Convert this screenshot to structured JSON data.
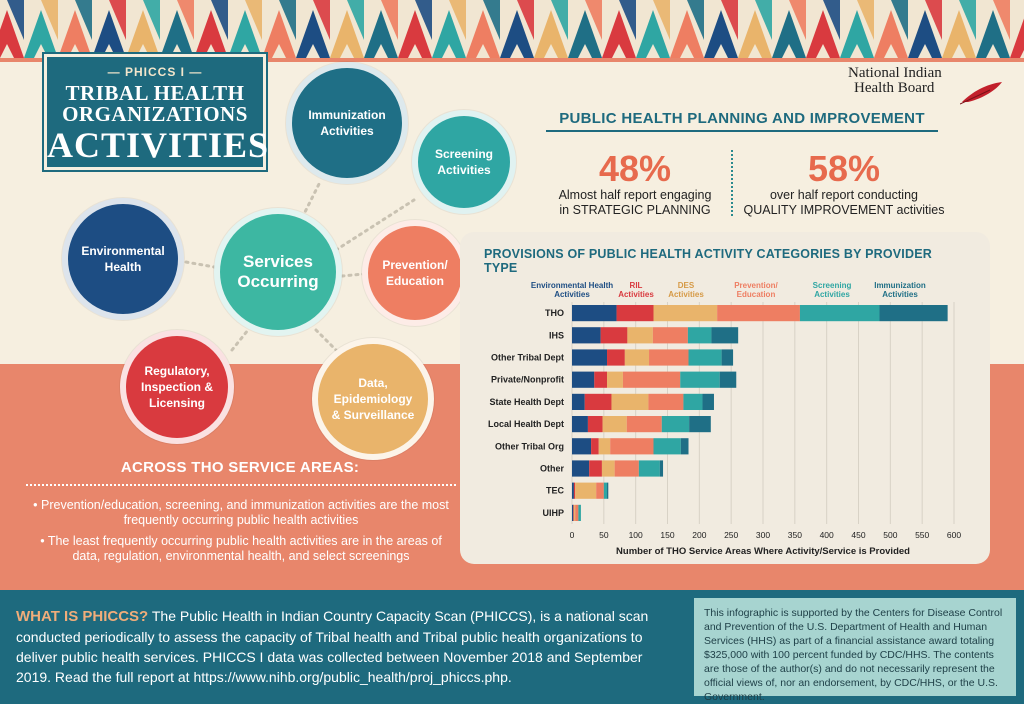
{
  "title": {
    "kicker": "— PHICCS I —",
    "line1": "TRIBAL HEALTH",
    "line2": "ORGANIZATIONS",
    "line3": "ACTIVITIES"
  },
  "org": {
    "line1": "National Indian",
    "line2": "Health Board"
  },
  "circles": {
    "immunization": "Immunization Activities",
    "screening": "Screening Activities",
    "environmental": "Environmental Health",
    "services": "Services Occurring",
    "prevention": "Prevention/ Education",
    "regulatory": "Regulatory, Inspection & Licensing",
    "data": "Data, Epidemiology & Surveillance"
  },
  "planning": {
    "title": "PUBLIC HEALTH PLANNING AND IMPROVEMENT",
    "stat1_value": "48%",
    "stat1_line1": "Almost half report engaging",
    "stat1_line2": "in STRATEGIC PLANNING",
    "stat2_value": "58%",
    "stat2_line1": "over half report conducting",
    "stat2_line2": "QUALITY IMPROVEMENT activities"
  },
  "chart_data": {
    "type": "bar",
    "orientation": "horizontal",
    "stacked": true,
    "title": "PROVISIONS OF PUBLIC HEALTH ACTIVITY CATEGORIES BY PROVIDER TYPE",
    "xlabel": "Number of THO Service Areas Where Activity/Service is Provided",
    "ylabel": "",
    "xlim": [
      0,
      600
    ],
    "xticks": [
      0,
      50,
      100,
      150,
      200,
      250,
      300,
      350,
      400,
      450,
      500,
      550,
      600
    ],
    "grid": true,
    "legend_position": "top",
    "categories": [
      "THO",
      "IHS",
      "Other Tribal Dept",
      "Private/Nonprofit",
      "State Health Dept",
      "Local Health Dept",
      "Other Tribal Org",
      "Other",
      "TEC",
      "UIHP"
    ],
    "series": [
      {
        "name": "Environmental Health Activities",
        "color": "#1d4d83",
        "values": [
          70,
          45,
          55,
          35,
          20,
          25,
          30,
          27,
          3,
          2
        ]
      },
      {
        "name": "RIL Activities",
        "color": "#d93a3f",
        "values": [
          58,
          42,
          28,
          20,
          42,
          23,
          12,
          20,
          2,
          1
        ]
      },
      {
        "name": "DES Activities",
        "color": "#e9b46b",
        "values": [
          100,
          40,
          38,
          25,
          58,
          38,
          18,
          20,
          33,
          2
        ]
      },
      {
        "name": "Prevention/ Education",
        "color": "#ee7e62",
        "values": [
          130,
          55,
          62,
          90,
          55,
          55,
          68,
          38,
          12,
          5
        ]
      },
      {
        "name": "Screening Activities",
        "color": "#2fa6a3",
        "values": [
          125,
          37,
          52,
          62,
          30,
          43,
          43,
          33,
          5,
          4
        ]
      },
      {
        "name": "Immunization Activities",
        "color": "#1f6f86",
        "values": [
          107,
          42,
          18,
          26,
          18,
          34,
          12,
          5,
          2,
          0
        ]
      }
    ]
  },
  "across": {
    "title": "ACROSS THO SERVICE AREAS:",
    "bullet1": "• Prevention/education, screening, and immunization activities are the most frequently occurring public health activities",
    "bullet2": "• The least frequently occurring public health activities are in the areas of data, regulation, environmental health, and select screenings"
  },
  "what": {
    "lead": "WHAT IS PHICCS?",
    "body": " The Public Health in Indian Country Capacity Scan (PHICCS), is a national scan conducted periodically to assess the capacity of Tribal health and Tribal public health organizations to deliver public health services. PHICCS I data was collected between November 2018 and September 2019. Read the full report at https://www.nihb.org/public_health/proj_phiccs.php."
  },
  "support": "This infographic is supported by the Centers for Disease Control and Prevention of the U.S. Department of Health and Human Services (HHS) as part of a financial assistance award totaling $325,000 with 100 percent funded by CDC/HHS. The contents are those of the author(s) and do not necessarily represent the official views of, nor an endorsement, by CDC/HHS, or the U.S. Government."
}
